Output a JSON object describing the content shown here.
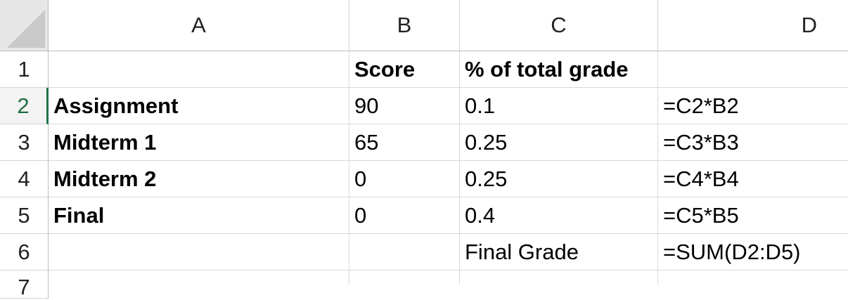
{
  "columns": [
    "A",
    "B",
    "C",
    "D"
  ],
  "rows": [
    "1",
    "2",
    "3",
    "4",
    "5",
    "6",
    "7"
  ],
  "cells": {
    "r1": [
      "",
      "Score",
      "% of total grade",
      ""
    ],
    "r2": [
      "Assignment",
      "90",
      "0.1",
      "=C2*B2"
    ],
    "r3": [
      "Midterm 1",
      "65",
      "0.25",
      "=C3*B3"
    ],
    "r4": [
      "Midterm 2",
      "0",
      "0.25",
      "=C4*B4"
    ],
    "r5": [
      "Final",
      "0",
      "0.4",
      "=C5*B5"
    ],
    "r6": [
      "",
      "",
      "Final Grade",
      "=SUM(D2:D5)"
    ],
    "r7": [
      "",
      "",
      "",
      ""
    ]
  },
  "active_row": "2",
  "colors": {
    "accent": "#217346",
    "header_bg": "#e6e6e6",
    "grid": "#d9d9d9"
  }
}
